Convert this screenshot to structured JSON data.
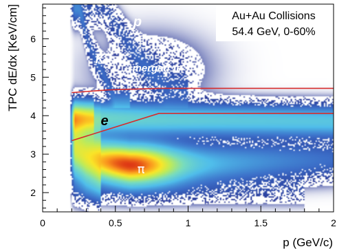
{
  "chart_data": {
    "type": "heatmap",
    "title": "",
    "xlabel": "p (GeV/c)",
    "ylabel": "TPC dE/dx [KeV/cm]",
    "xlim": [
      0,
      2
    ],
    "ylim": [
      1.5,
      6.9
    ],
    "x_ticks": [
      0,
      0.5,
      1,
      1.5,
      2
    ],
    "x_tick_labels": [
      "0",
      "0.5",
      "1",
      "1.5",
      "2"
    ],
    "y_ticks": [
      2,
      3,
      4,
      5,
      6
    ],
    "y_tick_labels": [
      "2",
      "3",
      "4",
      "5",
      "6"
    ],
    "legend": {
      "placement": "top-right",
      "lines": [
        "Au+Au Collisions",
        "54.4 GeV, 0-60%"
      ]
    },
    "annotations": [
      {
        "text": "p",
        "x": 0.67,
        "y": 6.4
      },
      {
        "text": "K",
        "x": 0.4,
        "y": 5.5
      },
      {
        "text": "merged π",
        "x": 0.8,
        "y": 5.3
      },
      {
        "text": "e",
        "x": 0.43,
        "y": 3.92
      },
      {
        "text": "π",
        "x": 0.7,
        "y": 2.72
      }
    ],
    "cut_lines": [
      {
        "name": "upper-cut",
        "points": [
          [
            0.2,
            4.6
          ],
          [
            0.45,
            4.67
          ],
          [
            0.8,
            4.71
          ],
          [
            2.0,
            4.71
          ]
        ]
      },
      {
        "name": "lower-cut",
        "points": [
          [
            0.2,
            3.35
          ],
          [
            0.8,
            4.06
          ],
          [
            2.0,
            4.06
          ]
        ]
      }
    ],
    "bands": [
      {
        "species": "π",
        "points": [
          [
            0.22,
            3.15
          ],
          [
            0.3,
            2.95
          ],
          [
            0.4,
            2.82
          ],
          [
            0.6,
            2.72
          ],
          [
            0.9,
            2.72
          ],
          [
            1.2,
            2.76
          ],
          [
            1.6,
            2.82
          ],
          [
            2.0,
            2.86
          ]
        ],
        "width": 0.33,
        "peak": 1.0
      },
      {
        "species": "e",
        "points": [
          [
            0.2,
            3.95
          ],
          [
            0.8,
            3.9
          ],
          [
            2.0,
            3.85
          ]
        ],
        "width": 0.26,
        "peak": 0.35
      },
      {
        "species": "K",
        "points": [
          [
            0.25,
            6.8
          ],
          [
            0.32,
            5.8
          ],
          [
            0.4,
            5.2
          ],
          [
            0.5,
            4.4
          ]
        ],
        "width": 0.22,
        "peak": 0.07
      },
      {
        "species": "p",
        "points": [
          [
            0.42,
            6.8
          ],
          [
            0.55,
            6.1
          ],
          [
            0.7,
            5.3
          ],
          [
            0.85,
            4.7
          ]
        ],
        "width": 0.3,
        "peak": 0.06
      }
    ]
  }
}
